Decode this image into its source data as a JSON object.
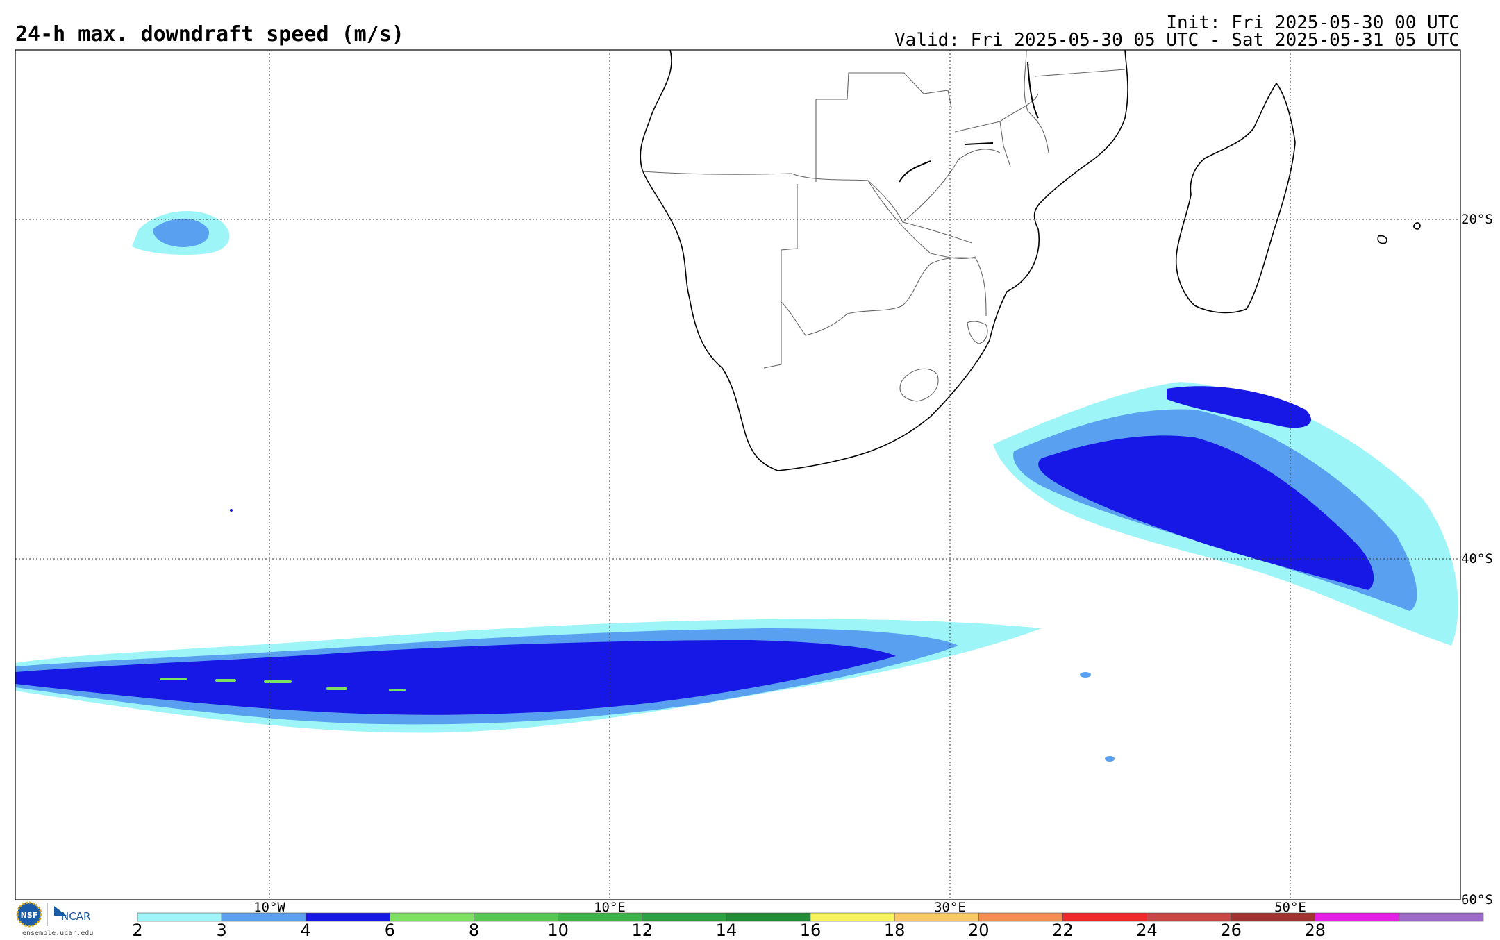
{
  "title": "24-h max. downdraft speed (m/s)",
  "init": "Init: Fri 2025-05-30 00 UTC",
  "valid": "Valid: Fri 2025-05-30 05 UTC - Sat 2025-05-31 05 UTC",
  "lon_labels": [
    "10°W",
    "10°E",
    "30°E",
    "50°E"
  ],
  "lat_labels": [
    "20°S",
    "40°S",
    "60°S"
  ],
  "colorbar": {
    "ticks": [
      "2",
      "3",
      "4",
      "6",
      "8",
      "10",
      "12",
      "14",
      "16",
      "18",
      "20",
      "22",
      "24",
      "26",
      "28"
    ],
    "colors": [
      "#9ef5f7",
      "#5aa0f0",
      "#1717e6",
      "#7ce060",
      "#54c850",
      "#3cb446",
      "#2aa040",
      "#208c38",
      "#f5f55a",
      "#fac864",
      "#f58c50",
      "#f02828",
      "#c84646",
      "#a03232",
      "#e61ee6",
      "#9b69c8"
    ]
  },
  "logo": {
    "org1": "NSF",
    "org2": "NCAR",
    "url": "ensemble.ucar.edu"
  }
}
